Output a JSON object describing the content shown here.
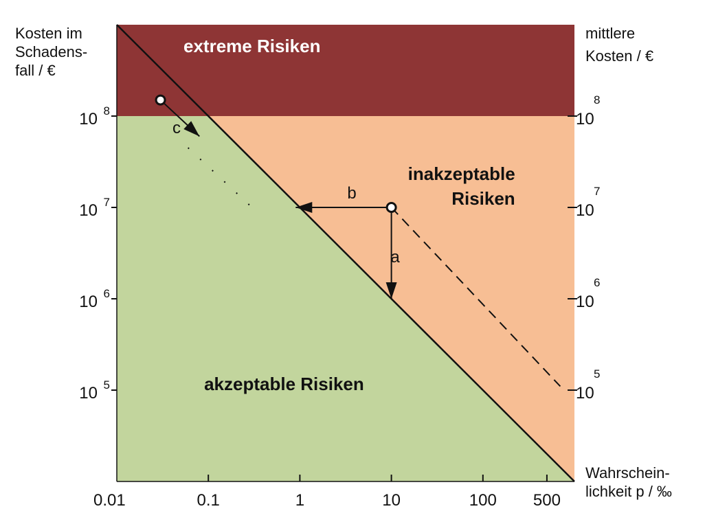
{
  "chart_data": {
    "type": "area",
    "title": "",
    "colors": {
      "extreme": "#8e3535",
      "inacceptable": "#f7be94",
      "acceptable": "#c2d59d",
      "line": "#111111",
      "marker_fill": "#ffffff"
    },
    "y_axis_left": {
      "label_lines": [
        "Kosten im",
        "Schadens-",
        "fall / €"
      ],
      "scale": "log",
      "ylim": [
        10000,
        1000000000
      ],
      "ticks": [
        {
          "value": 100000000,
          "base": "10",
          "exp": "8"
        },
        {
          "value": 10000000,
          "base": "10",
          "exp": "7"
        },
        {
          "value": 1000000,
          "base": "10",
          "exp": "6"
        },
        {
          "value": 100000,
          "base": "10",
          "exp": "5"
        }
      ]
    },
    "y_axis_right": {
      "label_lines": [
        "mittlere",
        "Kosten / €"
      ],
      "ticks": [
        {
          "value": 100000000,
          "base": "10",
          "exp": "8"
        },
        {
          "value": 10000000,
          "base": "10",
          "exp": "7"
        },
        {
          "value": 1000000,
          "base": "10",
          "exp": "6"
        },
        {
          "value": 100000,
          "base": "10",
          "exp": "5"
        }
      ]
    },
    "x_axis": {
      "label_lines": [
        "Wahrschein-",
        "lichkeit p / ‰"
      ],
      "scale": "log",
      "xlim": [
        0.01,
        1000
      ],
      "ticks": [
        {
          "value": 0.01,
          "label": "0.01"
        },
        {
          "value": 0.1,
          "label": "0.1"
        },
        {
          "value": 1,
          "label": "1"
        },
        {
          "value": 10,
          "label": "10"
        },
        {
          "value": 100,
          "label": "100"
        },
        {
          "value": 500,
          "label": "500"
        }
      ]
    },
    "extreme_threshold_cost": 100000000,
    "boundary_line": {
      "x": [
        0.01,
        1000
      ],
      "y": [
        1000000000,
        10000
      ]
    },
    "regions": [
      {
        "key": "extreme",
        "lines": [
          "extreme Risiken"
        ],
        "label_x": 0.3,
        "label_y": 500000000,
        "anchor": "middle",
        "color": "#ffffff"
      },
      {
        "key": "inacceptable",
        "lines": [
          "inakzeptable",
          "Risiken"
        ],
        "label_x": 225,
        "label_y": 20000000,
        "anchor": "end",
        "color": "#111111"
      },
      {
        "key": "acceptable",
        "lines": [
          "akzeptable Risiken"
        ],
        "label_x": 0.09,
        "label_y": 100000,
        "anchor": "start",
        "color": "#111111"
      }
    ],
    "points": [
      {
        "name": "c",
        "x": 0.03,
        "y": 150000000
      },
      {
        "name": "a-b",
        "x": 10,
        "y": 10000000
      }
    ],
    "iso_cost_lines": [
      {
        "from": {
          "x": 10,
          "y": 10000000
        },
        "to": {
          "x": 700,
          "y": 110000
        },
        "style": "dashed"
      },
      {
        "from": {
          "x": 0.06,
          "y": 45000000
        },
        "to": {
          "x": 0.3,
          "y": 10000000
        },
        "style": "dotted"
      }
    ],
    "arrows": [
      {
        "label": "a",
        "from": {
          "x": 10,
          "y": 10000000
        },
        "to": {
          "x": 10,
          "y": 1000000
        },
        "label_x": 11,
        "label_y": 2500000
      },
      {
        "label": "b",
        "from": {
          "x": 10,
          "y": 10000000
        },
        "to": {
          "x": 0.9,
          "y": 10000000
        },
        "label_x": 3.7,
        "label_y": 12500000
      },
      {
        "label": "c",
        "from": {
          "x": 0.03,
          "y": 150000000
        },
        "to": {
          "x": 0.08,
          "y": 60000000
        },
        "label_x": 0.045,
        "label_y": 65000000
      }
    ]
  }
}
